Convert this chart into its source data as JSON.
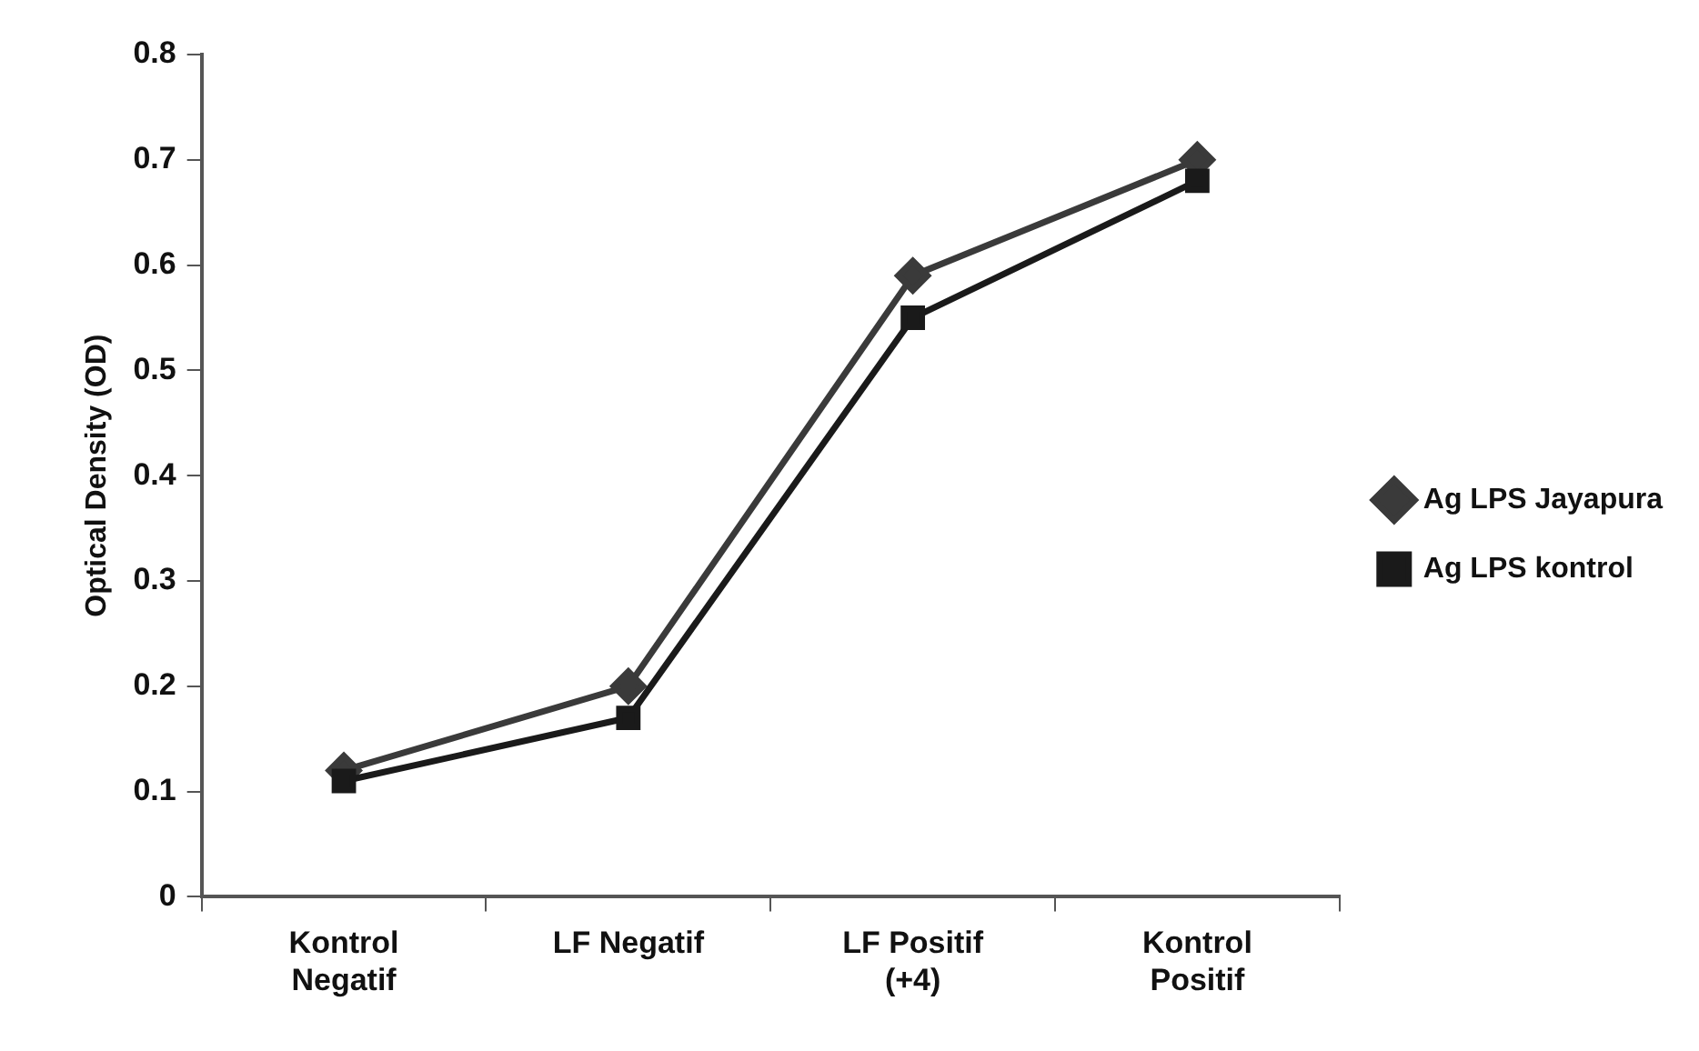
{
  "chart_data": {
    "type": "line",
    "ylabel": "Optical Density (OD)",
    "categories": [
      "Kontrol Negatif",
      "LF Negatif",
      "LF Positif (+4)",
      "Kontrol Positif"
    ],
    "series": [
      {
        "name": "Ag LPS Jayapura",
        "color": "#3a3a3a",
        "marker": "diamond",
        "values": [
          0.12,
          0.2,
          0.59,
          0.7
        ]
      },
      {
        "name": "Ag LPS kontrol",
        "color": "#1a1a1a",
        "marker": "square",
        "values": [
          0.11,
          0.17,
          0.55,
          0.68
        ]
      }
    ],
    "ylim": [
      0,
      0.8
    ],
    "yticks": [
      0,
      0.1,
      0.2,
      0.3,
      0.4,
      0.5,
      0.6,
      0.7,
      0.8
    ],
    "grid": false,
    "legend": "right",
    "line_style": "solid"
  }
}
